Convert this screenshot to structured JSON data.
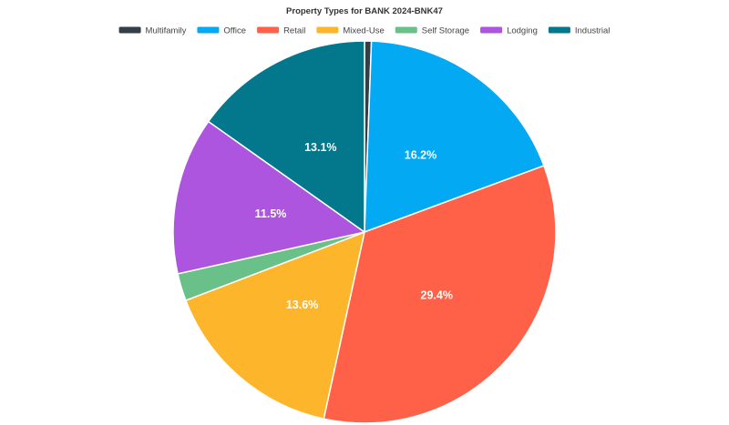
{
  "chart_data": {
    "type": "pie",
    "title": "Property Types for BANK 2024-BNK47",
    "legend_position": "top",
    "slices": [
      {
        "name": "Multifamily",
        "value": 0.5,
        "label": "",
        "color": "#343e48"
      },
      {
        "name": "Office",
        "value": 16.2,
        "label": "16.2%",
        "color": "#04a9f4"
      },
      {
        "name": "Retail",
        "value": 29.4,
        "label": "29.4%",
        "color": "#ff6148"
      },
      {
        "name": "Mixed-Use",
        "value": 13.6,
        "label": "13.6%",
        "color": "#fdb62b"
      },
      {
        "name": "Self Storage",
        "value": 2.0,
        "label": "",
        "color": "#69c088"
      },
      {
        "name": "Lodging",
        "value": 11.5,
        "label": "11.5%",
        "color": "#ad55de"
      },
      {
        "name": "Industrial",
        "value": 13.1,
        "label": "13.1%",
        "color": "#03778b"
      }
    ]
  }
}
